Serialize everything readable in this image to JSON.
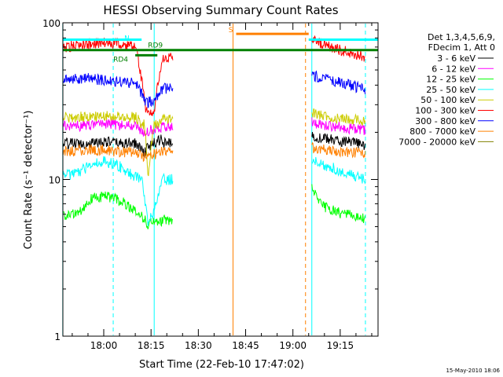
{
  "chart_data": {
    "type": "line",
    "title": "HESSI Observing Summary Count Rates",
    "xlabel": "Start Time (22-Feb-10 17:47:02)",
    "ylabel": "Count Rate (s⁻¹ detector⁻¹)",
    "y_scale": "log",
    "ylim": [
      1,
      100
    ],
    "xlim": [
      "17:47:02",
      "19:27"
    ],
    "x_ticks": [
      "18:00",
      "18:15",
      "18:30",
      "18:45",
      "19:00",
      "19:15"
    ],
    "y_ticks": [
      "1",
      "10",
      "100"
    ],
    "legend_position": "right",
    "legend_header": [
      "Det 1,3,4,5,6,9,",
      "FDecim 1, Att 0"
    ],
    "date_stamp": "15-May-2010 18:06",
    "series": [
      {
        "name": "3 - 6 keV",
        "color": "#000000",
        "segments": [
          {
            "x": [
              "17:47",
              "17:55",
              "18:00",
              "18:05",
              "18:10",
              "18:13",
              "18:14",
              "18:16",
              "18:18",
              "18:19",
              "18:22"
            ],
            "y": [
              17,
              17,
              17.5,
              17,
              17,
              15,
              16,
              17,
              18,
              17,
              17
            ]
          },
          {
            "x": [
              "19:06",
              "19:08",
              "19:12",
              "19:16",
              "19:20",
              "19:23"
            ],
            "y": [
              19,
              18.5,
              18,
              17.5,
              17,
              16.5
            ]
          }
        ]
      },
      {
        "name": "6 - 12 keV",
        "color": "#ff00ff",
        "segments": [
          {
            "x": [
              "17:47",
              "17:55",
              "18:00",
              "18:05",
              "18:10",
              "18:13",
              "18:16",
              "18:19",
              "18:22"
            ],
            "y": [
              22,
              22,
              23,
              22,
              22,
              20,
              21,
              22,
              22
            ]
          },
          {
            "x": [
              "19:06",
              "19:08",
              "19:12",
              "19:16",
              "19:20",
              "19:23"
            ],
            "y": [
              23,
              22.5,
              22,
              21.5,
              21,
              20.5
            ]
          }
        ]
      },
      {
        "name": "12 - 25 keV",
        "color": "#00ff00",
        "segments": [
          {
            "x": [
              "17:47",
              "17:52",
              "17:56",
              "18:00",
              "18:04",
              "18:09",
              "18:12",
              "18:14",
              "18:16",
              "18:19",
              "18:22"
            ],
            "y": [
              5.8,
              6.2,
              7.5,
              7.8,
              7.5,
              6.6,
              5.8,
              5.2,
              5.4,
              5.5,
              5.5
            ]
          },
          {
            "x": [
              "19:06",
              "19:07",
              "19:09",
              "19:12",
              "19:16",
              "19:20",
              "19:23"
            ],
            "y": [
              9,
              8,
              6.8,
              6.4,
              6,
              5.8,
              5.6
            ]
          }
        ]
      },
      {
        "name": "25 - 50 keV",
        "color": "#00ffff",
        "segments": [
          {
            "x": [
              "17:47",
              "17:52",
              "17:56",
              "18:00",
              "18:04",
              "18:08",
              "18:12",
              "18:14",
              "18:16",
              "18:19",
              "18:22"
            ],
            "y": [
              10.5,
              11,
              12.5,
              13,
              12.5,
              11,
              10,
              5,
              6.5,
              10,
              10
            ]
          },
          {
            "x": [
              "19:06",
              "19:07",
              "19:09",
              "19:12",
              "19:16",
              "19:20",
              "19:23"
            ],
            "y": [
              13.5,
              13,
              12.5,
              12,
              11,
              10.5,
              10
            ]
          }
        ]
      },
      {
        "name": "50 - 100 keV",
        "color": "#cccc00",
        "segments": [
          {
            "x": [
              "17:47",
              "17:55",
              "18:00",
              "18:05",
              "18:10",
              "18:13",
              "18:14",
              "18:16",
              "18:19",
              "18:22"
            ],
            "y": [
              25,
              25,
              25.5,
              25,
              25,
              22,
              10,
              22,
              24,
              24
            ]
          },
          {
            "x": [
              "19:06",
              "19:08",
              "19:12",
              "19:16",
              "19:20",
              "19:23"
            ],
            "y": [
              27,
              26,
              25,
              24.5,
              24,
              23.5
            ]
          }
        ]
      },
      {
        "name": "100 - 300 keV",
        "color": "#ff0000",
        "segments": [
          {
            "x": [
              "17:47",
              "17:55",
              "18:00",
              "18:05",
              "18:10",
              "18:13",
              "18:14",
              "18:16",
              "18:19",
              "18:22"
            ],
            "y": [
              70,
              73,
              75,
              73,
              70,
              30,
              26,
              27,
              60,
              60
            ]
          },
          {
            "x": [
              "19:06",
              "19:08",
              "19:12",
              "19:16",
              "19:20",
              "19:23"
            ],
            "y": [
              78,
              75,
              70,
              66,
              63,
              60
            ]
          }
        ]
      },
      {
        "name": "300 - 800 keV",
        "color": "#0000ff",
        "segments": [
          {
            "x": [
              "17:47",
              "17:52",
              "17:56",
              "18:00",
              "18:05",
              "18:10",
              "18:13",
              "18:14",
              "18:16",
              "18:19",
              "18:22"
            ],
            "y": [
              44,
              44,
              44,
              43,
              42,
              41,
              32,
              31,
              32,
              38,
              38
            ]
          },
          {
            "x": [
              "19:06",
              "19:08",
              "19:12",
              "19:16",
              "19:20",
              "19:23"
            ],
            "y": [
              46,
              45,
              43,
              41,
              39,
              37
            ]
          }
        ]
      },
      {
        "name": "800 - 7000 keV",
        "color": "#ff8000",
        "segments": [
          {
            "x": [
              "17:47",
              "17:55",
              "18:00",
              "18:05",
              "18:10",
              "18:13",
              "18:16",
              "18:19",
              "18:22"
            ],
            "y": [
              15,
              15.5,
              15.5,
              15,
              15,
              14,
              14.5,
              15,
              15
            ]
          },
          {
            "x": [
              "19:06",
              "19:08",
              "19:12",
              "19:16",
              "19:20",
              "19:23"
            ],
            "y": [
              16,
              15.5,
              15.3,
              15,
              14.8,
              14.5
            ]
          }
        ]
      },
      {
        "name": "7000 - 20000 keV",
        "color": "#808000",
        "segments": []
      }
    ],
    "flag_bars": [
      {
        "label": "S",
        "color": "#ff8000",
        "x_start": "18:42",
        "x_end": "19:05",
        "y": 85
      },
      {
        "label": "RD9",
        "color": "#008000",
        "x_start": "17:47",
        "x_end": "19:27",
        "y": 67
      },
      {
        "label": "RD4",
        "color": "#008000",
        "x_start": "18:10",
        "x_end": "18:17",
        "y": 62
      },
      {
        "label": "N",
        "color": "#00ffff",
        "x_start": "17:47",
        "x_end": "18:12",
        "y": 78
      },
      {
        "label": "",
        "color": "#00ffff",
        "x_start": "19:05",
        "x_end": "19:27",
        "y": 78
      }
    ],
    "vertical_markers": [
      {
        "x": "17:47",
        "color": "#00ffff",
        "style": "solid"
      },
      {
        "x": "18:03",
        "color": "#00ffff",
        "style": "dashed"
      },
      {
        "x": "18:16",
        "color": "#00ffff",
        "style": "solid"
      },
      {
        "x": "18:41",
        "color": "#ff8000",
        "style": "solid"
      },
      {
        "x": "19:04",
        "color": "#ff8000",
        "style": "dashed"
      },
      {
        "x": "19:06",
        "color": "#00ffff",
        "style": "solid"
      },
      {
        "x": "19:23",
        "color": "#00ffff",
        "style": "dashed"
      }
    ]
  }
}
